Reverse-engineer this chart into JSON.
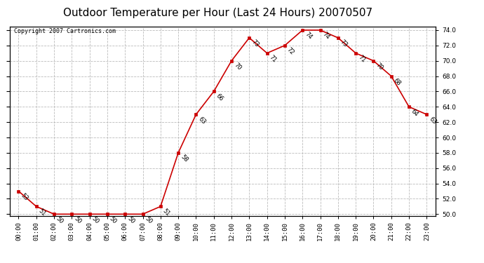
{
  "title": "Outdoor Temperature per Hour (Last 24 Hours) 20070507",
  "copyright": "Copyright 2007 Cartronics.com",
  "hours": [
    0,
    1,
    2,
    3,
    4,
    5,
    6,
    7,
    8,
    9,
    10,
    11,
    12,
    13,
    14,
    15,
    16,
    17,
    18,
    19,
    20,
    21,
    22,
    23
  ],
  "hour_labels": [
    "00:00",
    "01:00",
    "02:00",
    "03:00",
    "04:00",
    "05:00",
    "06:00",
    "07:00",
    "08:00",
    "09:00",
    "10:00",
    "11:00",
    "12:00",
    "13:00",
    "14:00",
    "15:00",
    "16:00",
    "17:00",
    "18:00",
    "19:00",
    "20:00",
    "21:00",
    "22:00",
    "23:00"
  ],
  "temps": [
    53,
    51,
    50,
    50,
    50,
    50,
    50,
    50,
    51,
    58,
    63,
    66,
    70,
    73,
    71,
    72,
    74,
    74,
    73,
    71,
    70,
    68,
    64,
    63
  ],
  "ylim_min": 49.8,
  "ylim_max": 74.5,
  "yticks": [
    50.0,
    52.0,
    54.0,
    56.0,
    58.0,
    60.0,
    62.0,
    64.0,
    66.0,
    68.0,
    70.0,
    72.0,
    74.0
  ],
  "line_color": "#cc0000",
  "marker_color": "#cc0000",
  "bg_color": "#ffffff",
  "grid_color": "#bbbbbb",
  "title_fontsize": 11,
  "tick_fontsize": 6.5,
  "annot_fontsize": 6,
  "copyright_fontsize": 6
}
